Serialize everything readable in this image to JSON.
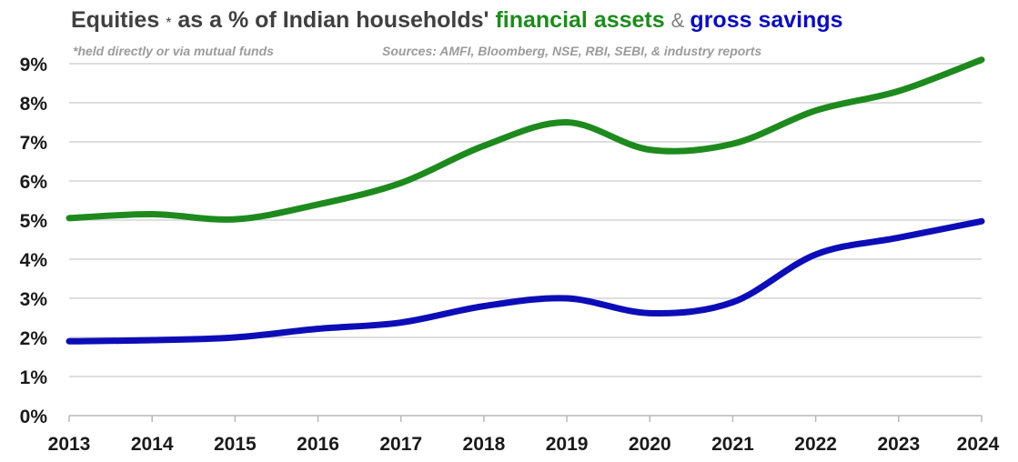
{
  "title": {
    "part1": "Equities",
    "star": "*",
    "part2": " as a % of Indian households' ",
    "part3": "financial assets",
    "part4": " & ",
    "part5": "gross savings",
    "color_dark": "#404040",
    "color_green": "#1e8a1e",
    "color_blue": "#0d0db8",
    "color_amp": "#7f7f7f"
  },
  "footnote": "*held directly or via mutual funds",
  "sources": "Sources: AMFI, Bloomberg, NSE, RBI, SEBI, & industry reports",
  "chart_data": {
    "type": "line",
    "title": "Equities* as a % of Indian households' financial assets & gross savings",
    "xlabel": "",
    "ylabel": "",
    "x": [
      2013,
      2014,
      2015,
      2016,
      2017,
      2018,
      2019,
      2020,
      2021,
      2022,
      2023,
      2024
    ],
    "x_tick_labels": [
      "2013",
      "2014",
      "2015",
      "2016",
      "2017",
      "2018",
      "2019",
      "2020",
      "2021",
      "2022",
      "2023",
      "2024"
    ],
    "ylim": [
      0,
      9
    ],
    "y_ticks": [
      0,
      1,
      2,
      3,
      4,
      5,
      6,
      7,
      8,
      9
    ],
    "y_tick_labels": [
      "0%",
      "1%",
      "2%",
      "3%",
      "4%",
      "5%",
      "6%",
      "7%",
      "8%",
      "9%"
    ],
    "grid": true,
    "legend": "none",
    "series": [
      {
        "label": "financial assets",
        "color": "#1e8a1e",
        "values": [
          5.05,
          5.15,
          5.02,
          5.4,
          5.95,
          6.9,
          7.5,
          6.8,
          6.95,
          7.8,
          8.3,
          9.1
        ]
      },
      {
        "label": "gross savings",
        "color": "#0d0db8",
        "values": [
          1.9,
          1.93,
          2.0,
          2.22,
          2.38,
          2.8,
          3.0,
          2.62,
          2.9,
          4.12,
          4.55,
          4.97
        ]
      }
    ]
  }
}
